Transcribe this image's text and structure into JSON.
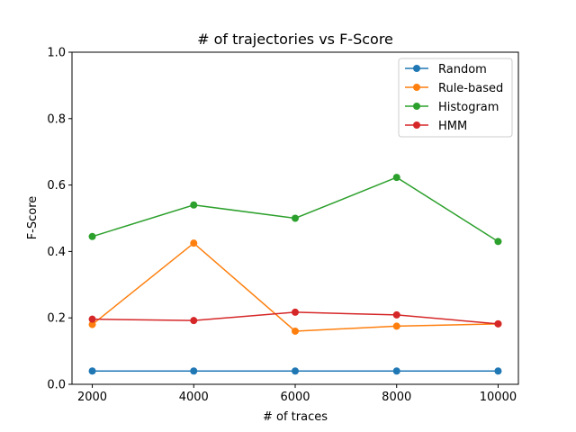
{
  "chart_data": {
    "type": "line",
    "title": "# of trajectories vs F-Score",
    "xlabel": "# of traces",
    "ylabel": "F-Score",
    "x": [
      2000,
      4000,
      6000,
      8000,
      10000
    ],
    "xticks": [
      2000,
      4000,
      6000,
      8000,
      10000
    ],
    "xlim": [
      1600,
      10400
    ],
    "ylim": [
      0.0,
      1.0
    ],
    "yticks": [
      0.0,
      0.2,
      0.4,
      0.6,
      0.8,
      1.0
    ],
    "ytick_labels": [
      "0.0",
      "0.2",
      "0.4",
      "0.6",
      "0.8",
      "1.0"
    ],
    "grid": false,
    "legend_position": "top-right",
    "series": [
      {
        "name": "Random",
        "color": "#1f77b4",
        "values": [
          0.04,
          0.04,
          0.04,
          0.04,
          0.04
        ]
      },
      {
        "name": "Rule-based",
        "color": "#ff7f0e",
        "values": [
          0.18,
          0.425,
          0.16,
          0.175,
          0.182
        ]
      },
      {
        "name": "Histogram",
        "color": "#2ca02c",
        "values": [
          0.445,
          0.54,
          0.5,
          0.623,
          0.43
        ]
      },
      {
        "name": "HMM",
        "color": "#d62728",
        "values": [
          0.196,
          0.192,
          0.217,
          0.209,
          0.182
        ]
      }
    ]
  }
}
